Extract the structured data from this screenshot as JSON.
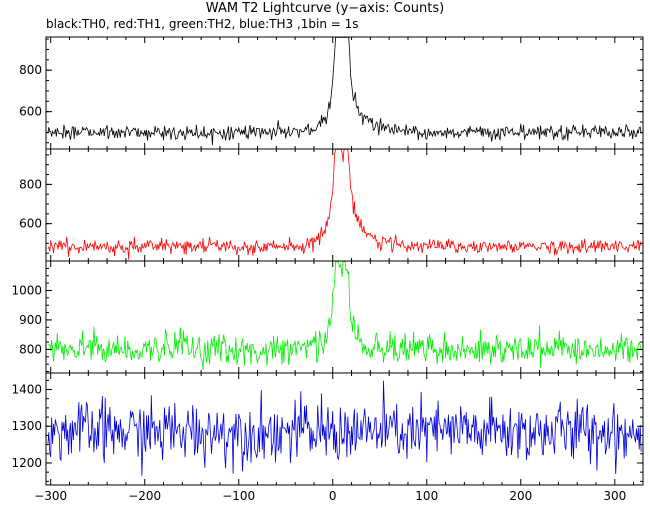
{
  "title": "WAM T2 Lightcurve (y−axis: Counts)",
  "subtitle": "black:TH0, red:TH1, green:TH2, blue:TH3 ,1bin = 1s",
  "chart_data": {
    "type": "line",
    "layout": "4 vertically stacked panels sharing x axis",
    "xlim": [
      -305,
      330
    ],
    "x_ticks": [
      -300,
      -200,
      -100,
      0,
      100,
      200,
      300
    ],
    "x_tick_labels": [
      "−300",
      "−200",
      "−100",
      "0",
      "100",
      "200",
      "300"
    ],
    "bin_seconds": 1,
    "panels": [
      {
        "name": "TH0",
        "color": "#000000",
        "ylim": [
          420,
          960
        ],
        "y_ticks": [
          600,
          800
        ],
        "y_tick_labels": [
          "600",
          "800"
        ],
        "baseline": 500,
        "noise": 18,
        "burst": [
          {
            "t": 5,
            "peak": 950,
            "width": 3
          },
          {
            "t": 14,
            "peak": 940,
            "width": 3
          },
          {
            "t": 10,
            "peak": 700,
            "width": 12
          },
          {
            "t": 25,
            "peak": 560,
            "width": 20
          }
        ]
      },
      {
        "name": "TH1",
        "color": "#ff0000",
        "ylim": [
          410,
          980
        ],
        "y_ticks": [
          600,
          800
        ],
        "y_tick_labels": [
          "600",
          "800"
        ],
        "baseline": 485,
        "noise": 18,
        "burst": [
          {
            "t": 5,
            "peak": 965,
            "width": 3
          },
          {
            "t": 14,
            "peak": 890,
            "width": 3
          },
          {
            "t": 9,
            "peak": 720,
            "width": 12
          },
          {
            "t": 25,
            "peak": 560,
            "width": 20
          }
        ]
      },
      {
        "name": "TH2",
        "color": "#00ee00",
        "ylim": [
          720,
          1100
        ],
        "y_ticks": [
          800,
          900,
          1000
        ],
        "y_tick_labels": [
          "800",
          "900",
          "1000"
        ],
        "baseline": 800,
        "noise": 26,
        "burst": [
          {
            "t": 5,
            "peak": 1095,
            "width": 3
          },
          {
            "t": 14,
            "peak": 1050,
            "width": 3
          },
          {
            "t": 9,
            "peak": 930,
            "width": 12
          }
        ]
      },
      {
        "name": "TH3",
        "color": "#0000dd",
        "ylim": [
          1140,
          1445
        ],
        "y_ticks": [
          1200,
          1300,
          1400
        ],
        "y_tick_labels": [
          "1200",
          "1300",
          "1400"
        ],
        "baseline": 1285,
        "noise": 42,
        "burst": []
      }
    ]
  }
}
